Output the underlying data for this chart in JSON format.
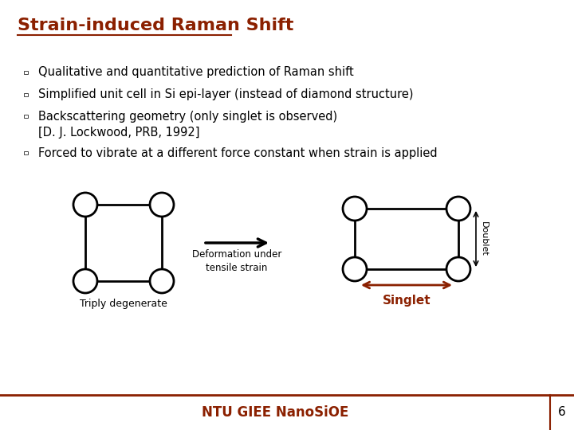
{
  "title": "Strain-induced Raman Shift",
  "title_color": "#8B2000",
  "title_fontsize": 16,
  "background_color": "#FFFFFF",
  "text_color": "#000000",
  "bullet_items_line1": [
    "Qualitative and quantitative prediction of Raman shift",
    "Simplified unit cell in Si epi-layer (instead of diamond structure)",
    "Backscattering geometry (only singlet is observed)",
    "Forced to vibrate at a different force constant when strain is applied"
  ],
  "bullet_item3_line2": "    [D. J. Lockwood, PRB, 1992]",
  "footer_text": "NTU GIEE NanoSiOE",
  "footer_color": "#8B2000",
  "footer_page": "6",
  "singlet_arrow_color": "#8B2000",
  "deformation_text": "Deformation under\ntensile strain",
  "triply_text": "Triply degenerate",
  "singlet_text": "Singlet",
  "doublet_text": "Doublet"
}
